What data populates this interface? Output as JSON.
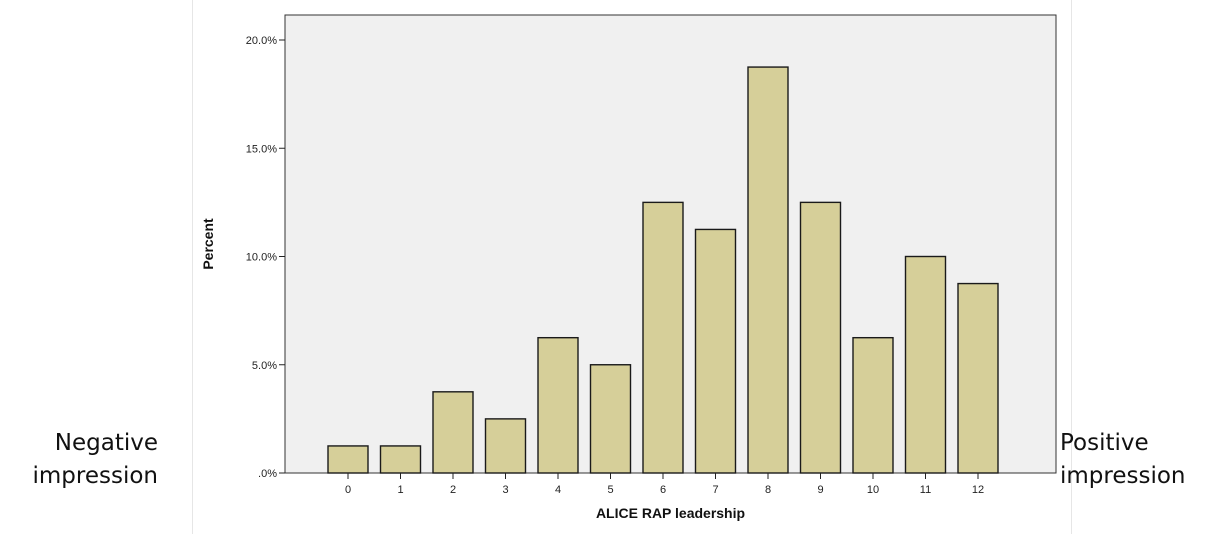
{
  "left_annotation": {
    "line1": "Negative",
    "line2": "impression"
  },
  "right_annotation": {
    "line1": "Positive",
    "line2": "impression"
  },
  "colors": {
    "bar_fill": "#d6cf99",
    "bar_stroke": "#1a1a1a",
    "plot_background": "#f0f0f0"
  },
  "chart_data": {
    "type": "bar",
    "title": "",
    "xlabel": "ALICE RAP leadership",
    "ylabel": "Percent",
    "categories": [
      "0",
      "1",
      "2",
      "3",
      "4",
      "5",
      "6",
      "7",
      "8",
      "9",
      "10",
      "11",
      "12"
    ],
    "values": [
      1.25,
      1.25,
      3.75,
      2.5,
      6.25,
      5.0,
      12.5,
      11.25,
      18.75,
      12.5,
      6.25,
      10.0,
      8.75
    ],
    "ylim": [
      0,
      20
    ],
    "yticks": [
      0,
      5,
      10,
      15,
      20
    ],
    "ytick_labels": [
      ".0%",
      "5.0%",
      "10.0%",
      "15.0%",
      "20.0%"
    ],
    "grid": false,
    "legend": "none"
  }
}
